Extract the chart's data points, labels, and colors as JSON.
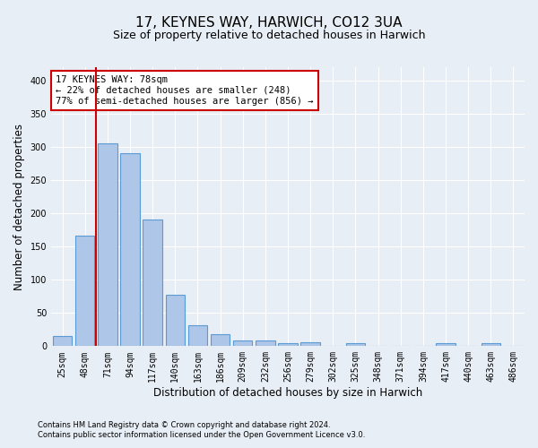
{
  "title": "17, KEYNES WAY, HARWICH, CO12 3UA",
  "subtitle": "Size of property relative to detached houses in Harwich",
  "xlabel": "Distribution of detached houses by size in Harwich",
  "ylabel": "Number of detached properties",
  "footnote1": "Contains HM Land Registry data © Crown copyright and database right 2024.",
  "footnote2": "Contains public sector information licensed under the Open Government Licence v3.0.",
  "bar_labels": [
    "25sqm",
    "48sqm",
    "71sqm",
    "94sqm",
    "117sqm",
    "140sqm",
    "163sqm",
    "186sqm",
    "209sqm",
    "232sqm",
    "256sqm",
    "279sqm",
    "302sqm",
    "325sqm",
    "348sqm",
    "371sqm",
    "394sqm",
    "417sqm",
    "440sqm",
    "463sqm",
    "486sqm"
  ],
  "bar_values": [
    15,
    167,
    306,
    290,
    191,
    77,
    32,
    18,
    9,
    9,
    5,
    6,
    0,
    5,
    0,
    0,
    0,
    4,
    0,
    4,
    0
  ],
  "bar_color": "#aec6e8",
  "bar_edge_color": "#5b9bd5",
  "vline_index": 2,
  "vline_color": "#cc0000",
  "annotation_text": "17 KEYNES WAY: 78sqm\n← 22% of detached houses are smaller (248)\n77% of semi-detached houses are larger (856) →",
  "annotation_box_color": "#ffffff",
  "annotation_box_edge": "#cc0000",
  "ylim": [
    0,
    420
  ],
  "yticks": [
    0,
    50,
    100,
    150,
    200,
    250,
    300,
    350,
    400
  ],
  "bg_color": "#e8eef5",
  "plot_bg_color": "#e8eef5",
  "grid_color": "#ffffff",
  "title_fontsize": 11,
  "subtitle_fontsize": 9,
  "tick_fontsize": 7,
  "ylabel_fontsize": 8.5,
  "xlabel_fontsize": 8.5,
  "annotation_fontsize": 7.5
}
